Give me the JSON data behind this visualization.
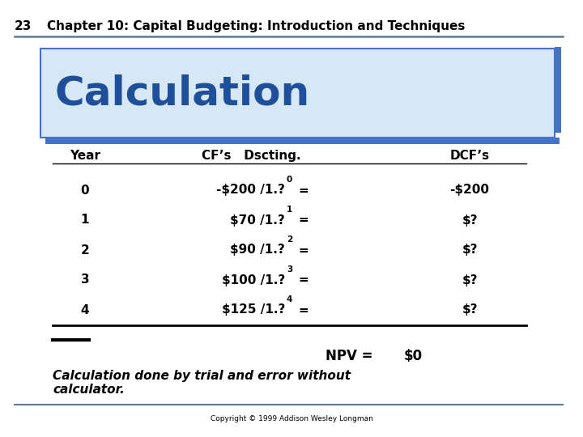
{
  "page_number": "23",
  "header_text": "Chapter 10: Capital Budgeting: Introduction and Techniques",
  "title": "Calculation",
  "title_color": "#1F4E9B",
  "title_bg_color": "#D6E8F5",
  "title_border_color": "#4472C4",
  "bg_color": "#FFFFFF",
  "npv_label": "NPV =",
  "npv_value": "$0",
  "footnote_line1": "Calculation done by trial and error without",
  "footnote_line2": "calculator.",
  "copyright": "Copyright © 1999 Addison Wesley Longman",
  "header_line_color": "#5B7B99",
  "cf_bases": [
    "-$200 /1.?",
    "$70 /1.?",
    "$90 /1.?",
    "$100 /1.?",
    "$125 /1.?"
  ],
  "cf_sups": [
    "0",
    "1",
    "2",
    "3",
    "4"
  ],
  "years": [
    "0",
    "1",
    "2",
    "3",
    "4"
  ],
  "dcfs": [
    "-$200",
    "$?",
    "$?",
    "$?",
    "$?"
  ]
}
